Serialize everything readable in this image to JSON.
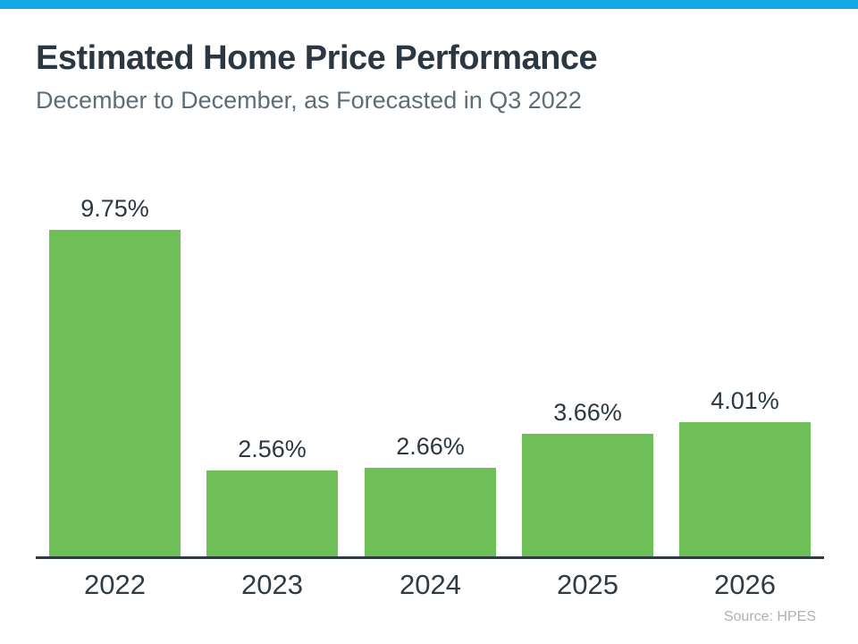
{
  "page": {
    "background": "#ffffff",
    "accent_bar_color": "#15a9e8"
  },
  "header": {
    "title": "Estimated Home Price Performance",
    "subtitle": "December to December, as Forecasted in Q3 2022"
  },
  "chart_data": {
    "type": "bar",
    "title": "Estimated Home Price Performance",
    "subtitle": "December to December, as Forecasted in Q3 2022",
    "categories": [
      "2022",
      "2023",
      "2024",
      "2025",
      "2026"
    ],
    "values": [
      9.75,
      2.56,
      2.66,
      3.66,
      4.01
    ],
    "value_labels": [
      "9.75%",
      "2.56%",
      "2.66%",
      "3.66%",
      "4.01%"
    ],
    "xlabel": "",
    "ylabel": "",
    "ylim": [
      0,
      10.5
    ],
    "grid": false,
    "legend": false,
    "bar_color": "#6fbf59",
    "axis_line_color": "#2e3a44"
  },
  "footer": {
    "source": "Source: HPES"
  }
}
